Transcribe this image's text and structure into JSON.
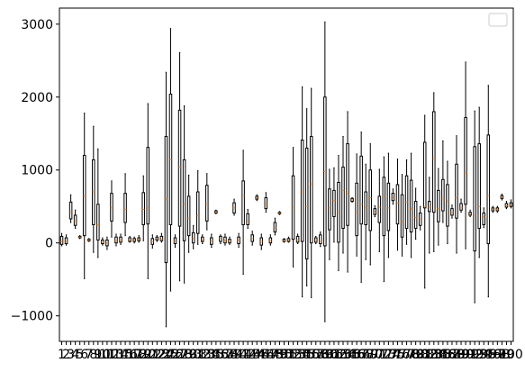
{
  "chart_data": {
    "type": "boxplot",
    "title": "",
    "xlabel": "",
    "ylabel": "",
    "ylim": [
      -1350,
      3220
    ],
    "xlim": [
      0.5,
      100.5
    ],
    "yticks": [
      -1000,
      0,
      1000,
      2000,
      3000
    ],
    "ytick_labels": [
      "−1000",
      "0",
      "1000",
      "2000",
      "3000"
    ],
    "legend": {
      "placement": "upper right",
      "entries": []
    },
    "grid": false,
    "colors": {
      "box": "#000000",
      "median": "#ff7f0e",
      "axes": "#000000",
      "background": "#ffffff"
    },
    "boxes": [
      {
        "x": 1,
        "whislo": -40,
        "q1": -20,
        "med": 20,
        "q3": 90,
        "whishi": 130
      },
      {
        "x": 2,
        "whislo": -30,
        "q1": -10,
        "med": 20,
        "q3": 70,
        "whishi": 110
      },
      {
        "x": 3,
        "whislo": 280,
        "q1": 330,
        "med": 420,
        "q3": 560,
        "whishi": 660
      },
      {
        "x": 4,
        "whislo": 200,
        "q1": 240,
        "med": 300,
        "q3": 380,
        "whishi": 450
      },
      {
        "x": 5,
        "whislo": 60,
        "q1": 70,
        "med": 80,
        "q3": 90,
        "whishi": 100
      },
      {
        "x": 6,
        "whislo": -490,
        "q1": 100,
        "med": 640,
        "q3": 1200,
        "whishi": 1780
      },
      {
        "x": 7,
        "whislo": 20,
        "q1": 30,
        "med": 40,
        "q3": 50,
        "whishi": 60
      },
      {
        "x": 8,
        "whislo": -130,
        "q1": 250,
        "med": 700,
        "q3": 1140,
        "whishi": 1600
      },
      {
        "x": 9,
        "whislo": -200,
        "q1": 40,
        "med": 250,
        "q3": 530,
        "whishi": 1290
      },
      {
        "x": 10,
        "whislo": -30,
        "q1": -10,
        "med": 10,
        "q3": 40,
        "whishi": 70
      },
      {
        "x": 11,
        "whislo": -90,
        "q1": -40,
        "med": 0,
        "q3": 40,
        "whishi": 80
      },
      {
        "x": 12,
        "whislo": 80,
        "q1": 300,
        "med": 480,
        "q3": 680,
        "whishi": 850
      },
      {
        "x": 13,
        "whislo": -40,
        "q1": 0,
        "med": 30,
        "q3": 80,
        "whishi": 120
      },
      {
        "x": 14,
        "whislo": -20,
        "q1": 10,
        "med": 40,
        "q3": 80,
        "whishi": 120
      },
      {
        "x": 15,
        "whislo": 100,
        "q1": 280,
        "med": 460,
        "q3": 680,
        "whishi": 950
      },
      {
        "x": 16,
        "whislo": 10,
        "q1": 20,
        "med": 40,
        "q3": 70,
        "whishi": 90
      },
      {
        "x": 17,
        "whislo": 0,
        "q1": 20,
        "med": 40,
        "q3": 60,
        "whishi": 80
      },
      {
        "x": 18,
        "whislo": 10,
        "q1": 30,
        "med": 50,
        "q3": 70,
        "whishi": 100
      },
      {
        "x": 19,
        "whislo": 30,
        "q1": 250,
        "med": 460,
        "q3": 690,
        "whishi": 920
      },
      {
        "x": 20,
        "whislo": -490,
        "q1": 260,
        "med": 480,
        "q3": 1310,
        "whishi": 1910
      },
      {
        "x": 21,
        "whislo": -70,
        "q1": -20,
        "med": 20,
        "q3": 60,
        "whishi": 110
      },
      {
        "x": 22,
        "whislo": 20,
        "q1": 40,
        "med": 60,
        "q3": 80,
        "whishi": 100
      },
      {
        "x": 23,
        "whislo": 10,
        "q1": 30,
        "med": 50,
        "q3": 90,
        "whishi": 130
      },
      {
        "x": 24,
        "whislo": -1150,
        "q1": -270,
        "med": 600,
        "q3": 1460,
        "whishi": 2340
      },
      {
        "x": 25,
        "whislo": -660,
        "q1": 250,
        "med": 1140,
        "q3": 2040,
        "whishi": 2940
      },
      {
        "x": 26,
        "whislo": -60,
        "q1": -10,
        "med": 20,
        "q3": 70,
        "whishi": 110
      },
      {
        "x": 27,
        "whislo": -520,
        "q1": 230,
        "med": 1040,
        "q3": 1820,
        "whishi": 2610
      },
      {
        "x": 28,
        "whislo": -550,
        "q1": 30,
        "med": 530,
        "q3": 1140,
        "whishi": 1880
      },
      {
        "x": 29,
        "whislo": -130,
        "q1": 100,
        "med": 340,
        "q3": 640,
        "whishi": 930
      },
      {
        "x": 30,
        "whislo": -80,
        "q1": 0,
        "med": 60,
        "q3": 140,
        "whishi": 240
      },
      {
        "x": 31,
        "whislo": -20,
        "q1": 130,
        "med": 370,
        "q3": 700,
        "whishi": 990
      },
      {
        "x": 32,
        "whislo": -10,
        "q1": 20,
        "med": 40,
        "q3": 80,
        "whishi": 110
      },
      {
        "x": 33,
        "whislo": 180,
        "q1": 300,
        "med": 540,
        "q3": 790,
        "whishi": 950
      },
      {
        "x": 34,
        "whislo": -60,
        "q1": -20,
        "med": 30,
        "q3": 70,
        "whishi": 120
      },
      {
        "x": 35,
        "whislo": 400,
        "q1": 410,
        "med": 420,
        "q3": 440,
        "whishi": 450
      },
      {
        "x": 36,
        "whislo": -10,
        "q1": 20,
        "med": 60,
        "q3": 90,
        "whishi": 110
      },
      {
        "x": 37,
        "whislo": -30,
        "q1": 0,
        "med": 30,
        "q3": 80,
        "whishi": 120
      },
      {
        "x": 38,
        "whislo": -20,
        "q1": 0,
        "med": 20,
        "q3": 50,
        "whishi": 80
      },
      {
        "x": 39,
        "whislo": 380,
        "q1": 410,
        "med": 480,
        "q3": 550,
        "whishi": 600
      },
      {
        "x": 40,
        "whislo": -60,
        "q1": -10,
        "med": 40,
        "q3": 80,
        "whishi": 130
      },
      {
        "x": 41,
        "whislo": -430,
        "q1": 250,
        "med": 650,
        "q3": 850,
        "whishi": 1270
      },
      {
        "x": 42,
        "whislo": 200,
        "q1": 250,
        "med": 300,
        "q3": 400,
        "whishi": 460
      },
      {
        "x": 43,
        "whislo": -30,
        "q1": 20,
        "med": 60,
        "q3": 110,
        "whishi": 160
      },
      {
        "x": 44,
        "whislo": 580,
        "q1": 600,
        "med": 620,
        "q3": 640,
        "whishi": 660
      },
      {
        "x": 45,
        "whislo": -90,
        "q1": -30,
        "med": 20,
        "q3": 70,
        "whishi": 120
      },
      {
        "x": 46,
        "whislo": 420,
        "q1": 470,
        "med": 540,
        "q3": 620,
        "whishi": 690
      },
      {
        "x": 47,
        "whislo": -30,
        "q1": 0,
        "med": 30,
        "q3": 70,
        "whishi": 110
      },
      {
        "x": 48,
        "whislo": 110,
        "q1": 150,
        "med": 210,
        "q3": 280,
        "whishi": 340
      },
      {
        "x": 49,
        "whislo": 390,
        "q1": 400,
        "med": 410,
        "q3": 420,
        "whishi": 430
      },
      {
        "x": 50,
        "whislo": 10,
        "q1": 20,
        "med": 30,
        "q3": 50,
        "whishi": 60
      },
      {
        "x": 51,
        "whislo": 10,
        "q1": 20,
        "med": 40,
        "q3": 60,
        "whishi": 80
      },
      {
        "x": 52,
        "whislo": -330,
        "q1": 50,
        "med": 480,
        "q3": 920,
        "whishi": 1310
      },
      {
        "x": 53,
        "whislo": -10,
        "q1": 10,
        "med": 40,
        "q3": 90,
        "whishi": 120
      },
      {
        "x": 54,
        "whislo": -740,
        "q1": 20,
        "med": 700,
        "q3": 1410,
        "whishi": 2140
      },
      {
        "x": 55,
        "whislo": -590,
        "q1": -220,
        "med": 500,
        "q3": 1300,
        "whishi": 1840
      },
      {
        "x": 56,
        "whislo": -750,
        "q1": 0,
        "med": 810,
        "q3": 1460,
        "whishi": 2120
      },
      {
        "x": 57,
        "whislo": -10,
        "q1": 10,
        "med": 40,
        "q3": 70,
        "whishi": 90
      },
      {
        "x": 58,
        "whislo": -50,
        "q1": -10,
        "med": 20,
        "q3": 110,
        "whishi": 150
      },
      {
        "x": 59,
        "whislo": -1080,
        "q1": -40,
        "med": 980,
        "q3": 2000,
        "whishi": 3030
      },
      {
        "x": 60,
        "whislo": -230,
        "q1": 180,
        "med": 480,
        "q3": 740,
        "whishi": 1010
      },
      {
        "x": 61,
        "whislo": 10,
        "q1": 360,
        "med": 580,
        "q3": 720,
        "whishi": 1030
      },
      {
        "x": 62,
        "whislo": -380,
        "q1": 10,
        "med": 430,
        "q3": 830,
        "whishi": 1200
      },
      {
        "x": 63,
        "whislo": -140,
        "q1": 200,
        "med": 720,
        "q3": 1040,
        "whishi": 1460
      },
      {
        "x": 64,
        "whislo": -400,
        "q1": 240,
        "med": 680,
        "q3": 1360,
        "whishi": 1800
      },
      {
        "x": 65,
        "whislo": 560,
        "q1": 570,
        "med": 590,
        "q3": 610,
        "whishi": 620
      },
      {
        "x": 66,
        "whislo": -180,
        "q1": 100,
        "med": 420,
        "q3": 820,
        "whishi": 1220
      },
      {
        "x": 67,
        "whislo": -540,
        "q1": 260,
        "med": 530,
        "q3": 1190,
        "whishi": 1520
      },
      {
        "x": 68,
        "whislo": -230,
        "q1": 250,
        "med": 480,
        "q3": 700,
        "whishi": 1080
      },
      {
        "x": 69,
        "whislo": -300,
        "q1": 170,
        "med": 620,
        "q3": 1000,
        "whishi": 1360
      },
      {
        "x": 70,
        "whislo": 360,
        "q1": 390,
        "med": 430,
        "q3": 470,
        "whishi": 510
      },
      {
        "x": 71,
        "whislo": -120,
        "q1": 280,
        "med": 490,
        "q3": 640,
        "whishi": 1010
      },
      {
        "x": 72,
        "whislo": -530,
        "q1": 100,
        "med": 640,
        "q3": 900,
        "whishi": 1180
      },
      {
        "x": 73,
        "whislo": -200,
        "q1": 170,
        "med": 480,
        "q3": 820,
        "whishi": 1230
      },
      {
        "x": 74,
        "whislo": 530,
        "q1": 580,
        "med": 620,
        "q3": 680,
        "whishi": 740
      },
      {
        "x": 75,
        "whislo": -100,
        "q1": 260,
        "med": 550,
        "q3": 800,
        "whishi": 1150
      },
      {
        "x": 76,
        "whislo": -180,
        "q1": 80,
        "med": 300,
        "q3": 660,
        "whishi": 940
      },
      {
        "x": 77,
        "whislo": -20,
        "q1": 200,
        "med": 560,
        "q3": 920,
        "whishi": 1140
      },
      {
        "x": 78,
        "whislo": -200,
        "q1": 150,
        "med": 470,
        "q3": 860,
        "whishi": 1230
      },
      {
        "x": 79,
        "whislo": 50,
        "q1": 200,
        "med": 350,
        "q3": 570,
        "whishi": 750
      },
      {
        "x": 80,
        "whislo": 180,
        "q1": 240,
        "med": 330,
        "q3": 410,
        "whishi": 500
      },
      {
        "x": 81,
        "whislo": -620,
        "q1": 480,
        "med": 500,
        "q3": 1380,
        "whishi": 1750
      },
      {
        "x": 82,
        "whislo": -140,
        "q1": 430,
        "med": 490,
        "q3": 570,
        "whishi": 900
      },
      {
        "x": 83,
        "whislo": -120,
        "q1": 420,
        "med": 1160,
        "q3": 1800,
        "whishi": 2060
      },
      {
        "x": 84,
        "whislo": -30,
        "q1": 290,
        "med": 470,
        "q3": 720,
        "whishi": 1020
      },
      {
        "x": 85,
        "whislo": 280,
        "q1": 440,
        "med": 610,
        "q3": 870,
        "whishi": 1400
      },
      {
        "x": 86,
        "whislo": -10,
        "q1": 230,
        "med": 570,
        "q3": 800,
        "whishi": 1120
      },
      {
        "x": 87,
        "whislo": 340,
        "q1": 380,
        "med": 420,
        "q3": 470,
        "whishi": 520
      },
      {
        "x": 88,
        "whislo": -140,
        "q1": 340,
        "med": 620,
        "q3": 1080,
        "whishi": 1470
      },
      {
        "x": 89,
        "whislo": 420,
        "q1": 450,
        "med": 480,
        "q3": 540,
        "whishi": 600
      },
      {
        "x": 90,
        "whislo": -80,
        "q1": 530,
        "med": 960,
        "q3": 1720,
        "whishi": 2480
      },
      {
        "x": 91,
        "whislo": 360,
        "q1": 380,
        "med": 400,
        "q3": 420,
        "whishi": 450
      },
      {
        "x": 92,
        "whislo": -820,
        "q1": -110,
        "med": 370,
        "q3": 1320,
        "whishi": 1810
      },
      {
        "x": 93,
        "whislo": -200,
        "q1": 200,
        "med": 500,
        "q3": 1360,
        "whishi": 1860
      },
      {
        "x": 94,
        "whislo": 210,
        "q1": 250,
        "med": 360,
        "q3": 410,
        "whishi": 480
      },
      {
        "x": 95,
        "whislo": -740,
        "q1": -10,
        "med": 650,
        "q3": 1480,
        "whishi": 2160
      },
      {
        "x": 96,
        "whislo": 420,
        "q1": 440,
        "med": 460,
        "q3": 480,
        "whishi": 500
      },
      {
        "x": 97,
        "whislo": 420,
        "q1": 440,
        "med": 460,
        "q3": 480,
        "whishi": 500
      },
      {
        "x": 98,
        "whislo": 590,
        "q1": 610,
        "med": 630,
        "q3": 650,
        "whishi": 670
      },
      {
        "x": 99,
        "whislo": 470,
        "q1": 490,
        "med": 510,
        "q3": 540,
        "whishi": 570
      },
      {
        "x": 100,
        "whislo": 480,
        "q1": 500,
        "med": 520,
        "q3": 550,
        "whishi": 590
      }
    ],
    "x_tick_labels": [
      "1",
      "2",
      "3",
      "4",
      "5",
      "6",
      "7",
      "8",
      "9",
      "10",
      "11",
      "12",
      "13",
      "14",
      "15",
      "16",
      "17",
      "18",
      "19",
      "20",
      "21",
      "22",
      "23",
      "24",
      "25",
      "26",
      "27",
      "28",
      "29",
      "30",
      "31",
      "32",
      "33",
      "34",
      "35",
      "36",
      "37",
      "38",
      "39",
      "40",
      "41",
      "42",
      "43",
      "44",
      "45",
      "46",
      "47",
      "48",
      "49",
      "50",
      "51",
      "52",
      "53",
      "54",
      "55",
      "56",
      "57",
      "58",
      "59",
      "60",
      "61",
      "62",
      "63",
      "64",
      "65",
      "66",
      "67",
      "68",
      "69",
      "70",
      "71",
      "72",
      "73",
      "74",
      "75",
      "76",
      "77",
      "78",
      "79",
      "80",
      "81",
      "82",
      "83",
      "84",
      "85",
      "86",
      "87",
      "88",
      "89",
      "90",
      "91",
      "92",
      "93",
      "94",
      "95",
      "96",
      "97",
      "98",
      "99",
      "100"
    ]
  }
}
